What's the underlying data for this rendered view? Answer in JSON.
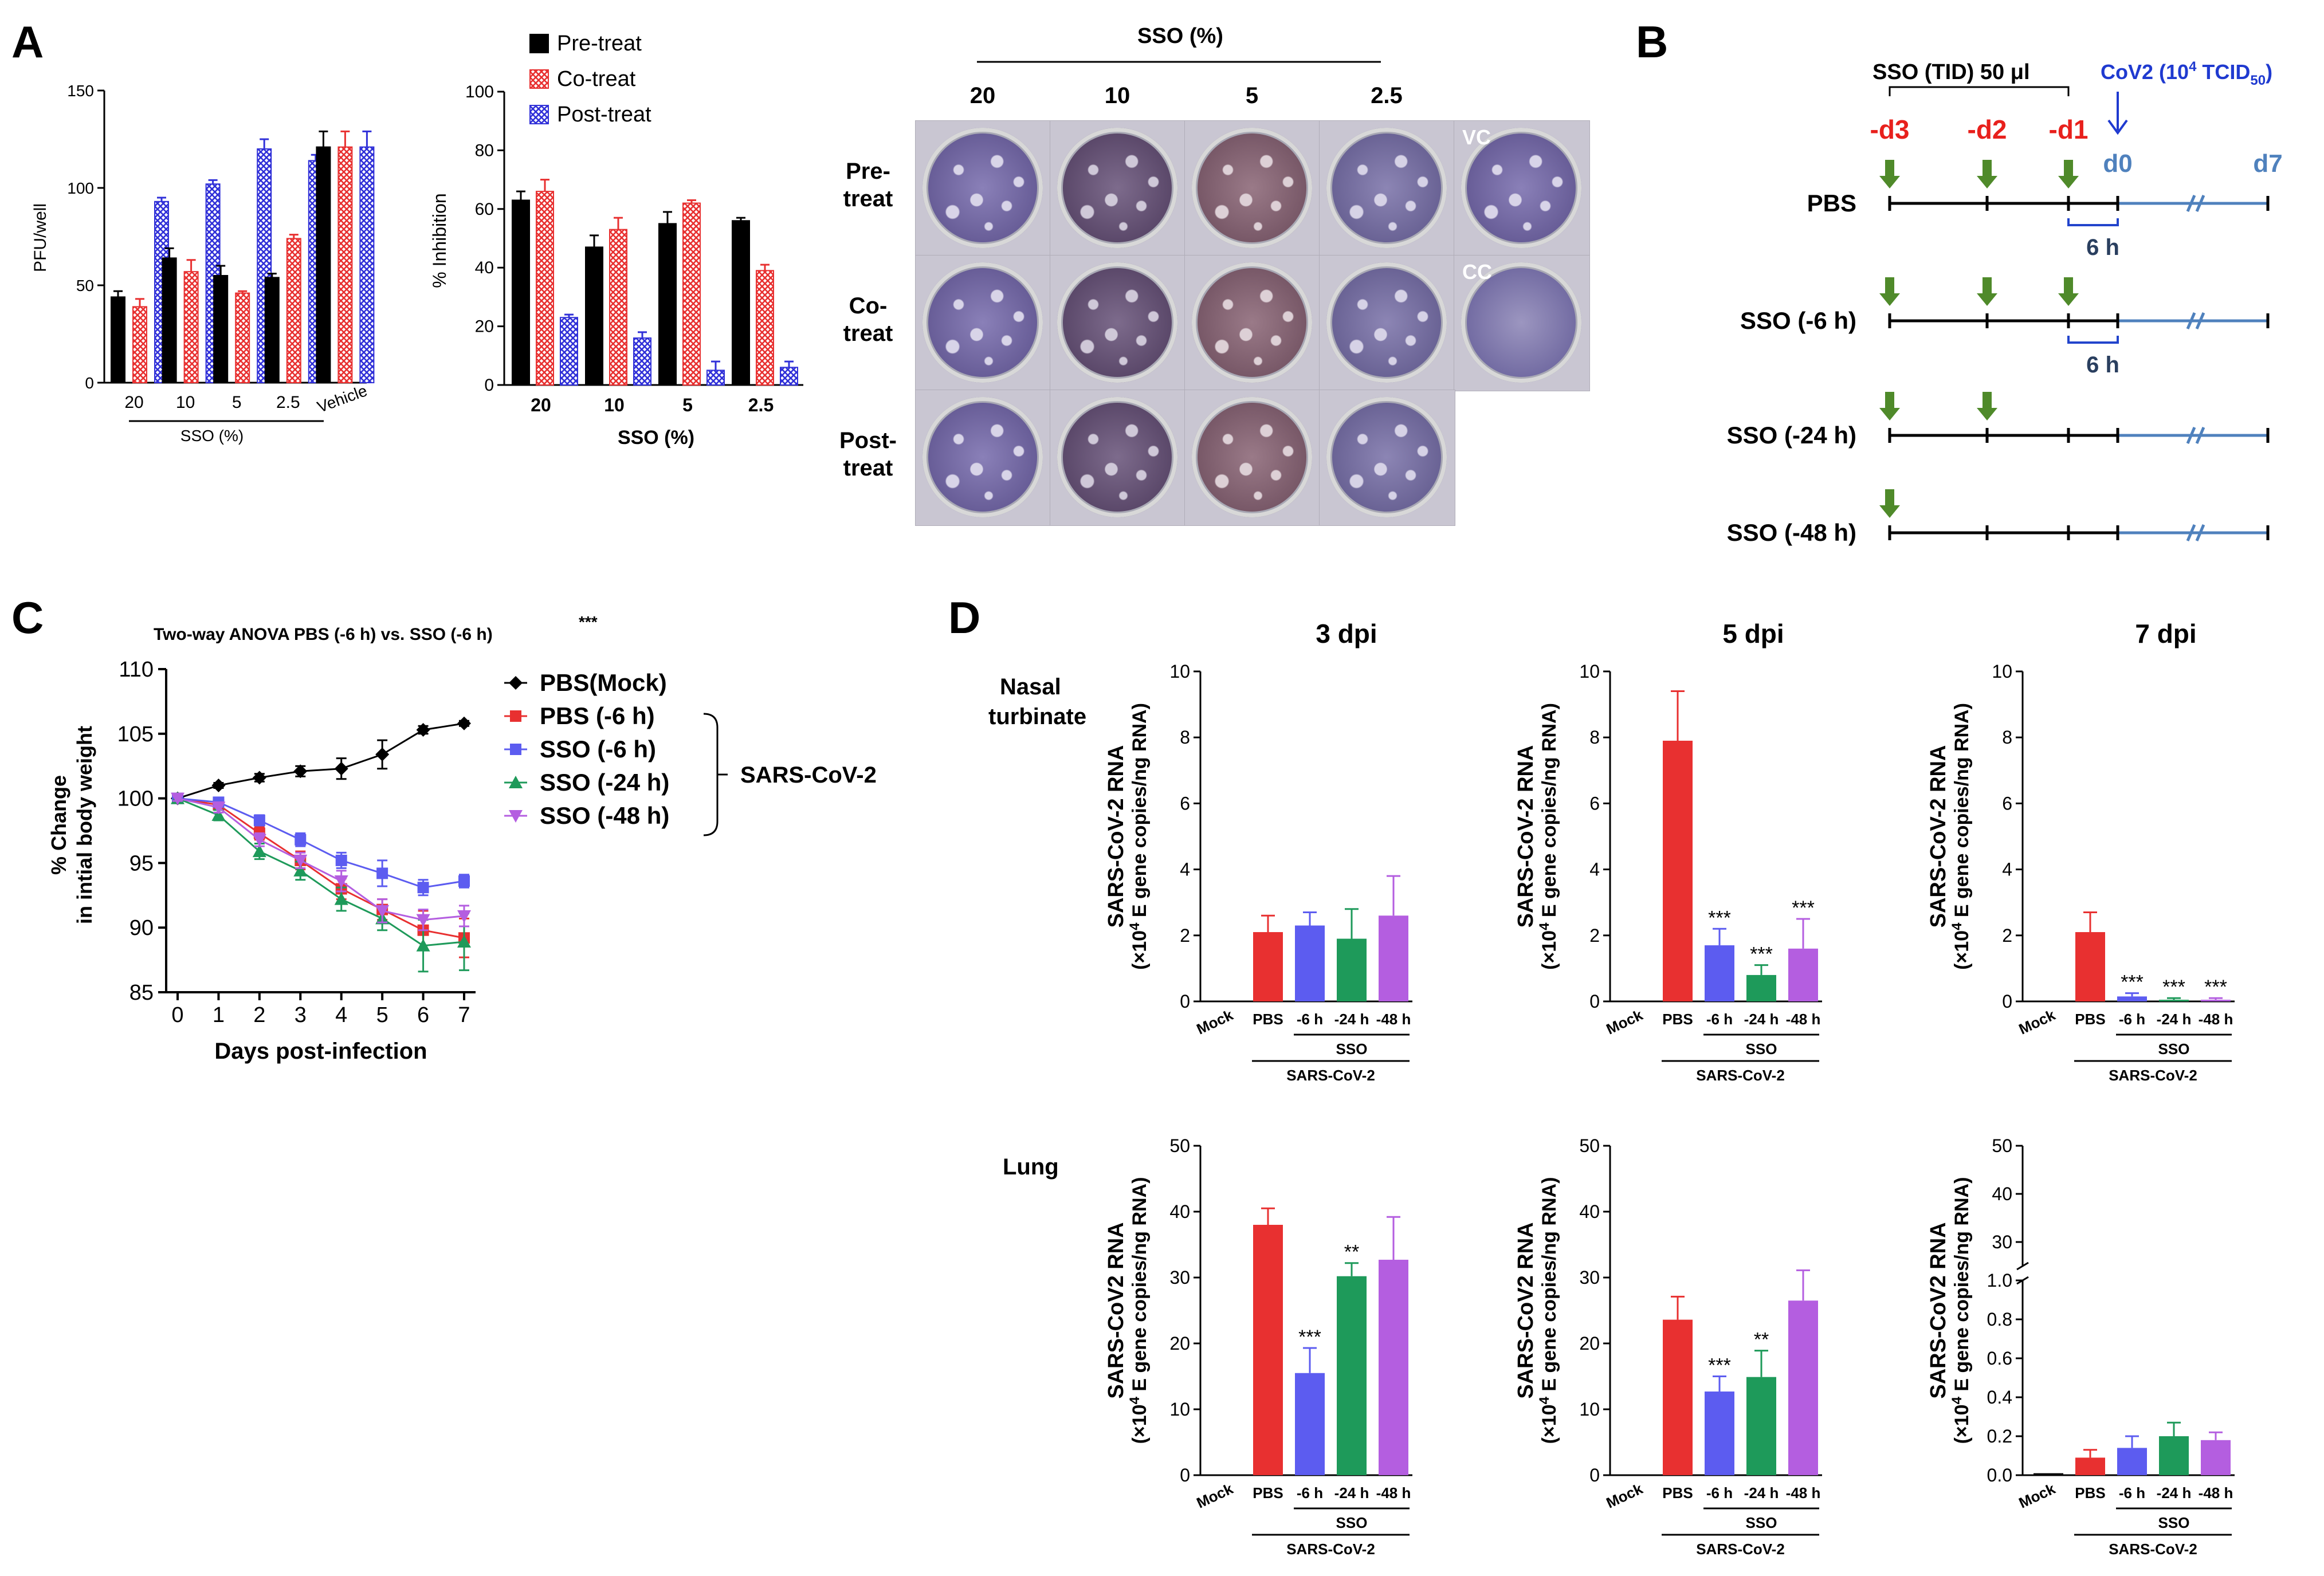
{
  "panel_letters": {
    "A": "A",
    "B": "B",
    "C": "C",
    "D": "D"
  },
  "colors": {
    "black": "#000000",
    "red": "#e83030",
    "blue": "#5c5cf0",
    "green": "#1e9a5a",
    "purple": "#b45ee0",
    "arrow_green": "#4f8a2a",
    "day_red": "#e8201c",
    "day_blue": "#4f81bd",
    "cov_blue": "#1f3ad0"
  },
  "panel_A": {
    "pfu_chart": {
      "type": "bar",
      "ylabel": "PFU/well",
      "ylim": [
        0,
        150
      ],
      "yticks": [
        0,
        50,
        100,
        150
      ],
      "categories": [
        "20",
        "10",
        "5",
        "2.5",
        "Vehicle"
      ],
      "group_label": "SSO (%)",
      "series": [
        {
          "name": "Pre-treat",
          "values": [
            44,
            64,
            55,
            54,
            121
          ],
          "errors": [
            3,
            5,
            5,
            2,
            8
          ]
        },
        {
          "name": "Co-treat",
          "values": [
            39,
            57,
            46,
            74,
            121
          ],
          "errors": [
            4,
            6,
            1,
            2,
            8
          ]
        },
        {
          "name": "Post-treat",
          "values": [
            93,
            102,
            120,
            114,
            121
          ],
          "errors": [
            2,
            2,
            5,
            3,
            8
          ]
        }
      ]
    },
    "inhibition_chart": {
      "type": "bar",
      "ylabel": "% Inhibition",
      "xlabel": "SSO (%)",
      "ylim": [
        0,
        100
      ],
      "yticks": [
        0,
        20,
        40,
        60,
        80,
        100
      ],
      "categories": [
        "20",
        "10",
        "5",
        "2.5"
      ],
      "legend": [
        "Pre-treat",
        "Co-treat",
        "Post-treat"
      ],
      "series": [
        {
          "name": "Pre-treat",
          "values": [
            63,
            47,
            55,
            56
          ],
          "errors": [
            3,
            4,
            4,
            1
          ]
        },
        {
          "name": "Co-treat",
          "values": [
            66,
            53,
            62,
            39
          ],
          "errors": [
            4,
            4,
            1,
            2
          ]
        },
        {
          "name": "Post-treat",
          "values": [
            23,
            16,
            5,
            6
          ],
          "errors": [
            1,
            2,
            3,
            2
          ]
        }
      ]
    },
    "plaque_grid": {
      "header": "SSO (%)",
      "columns": [
        "20",
        "10",
        "5",
        "2.5"
      ],
      "rows": [
        "Pre-\ntreat",
        "Co-\ntreat",
        "Post-\ntreat"
      ],
      "controls": [
        "VC",
        "CC"
      ]
    }
  },
  "panel_B": {
    "dose_label": "SSO (TID) 50 μl",
    "challenge_label": "CoV2 (10",
    "challenge_sup": "4",
    "challenge_unit": " TCID",
    "challenge_sub": "50",
    "challenge_close": ")",
    "days": [
      "-d3",
      "-d2",
      "-d1",
      "d0",
      "d7"
    ],
    "rows": [
      "PBS",
      "SSO (-6 h)",
      "SSO (-24 h)",
      "SSO (-48 h)"
    ],
    "gap_label": "6 h"
  },
  "panel_C": {
    "type": "line",
    "title": "Two-way ANOVA PBS (-6 h) vs. SSO (-6 h)",
    "title_sig": "***",
    "ylabel_1": "% Change",
    "ylabel_2": "in intial body weight",
    "xlabel": "Days post-infection",
    "ylim": [
      85,
      110
    ],
    "yticks": [
      85,
      90,
      95,
      100,
      105,
      110
    ],
    "x": [
      0,
      1,
      2,
      3,
      4,
      5,
      6,
      7
    ],
    "group_label": "SARS-CoV-2",
    "series": [
      {
        "name": "PBS(Mock)",
        "values": [
          100,
          101,
          101.6,
          102.1,
          102.3,
          103.4,
          105.3,
          105.8
        ],
        "errors": [
          0.2,
          0.2,
          0.3,
          0.4,
          0.8,
          1.1,
          0.3,
          0.2
        ]
      },
      {
        "name": "PBS (-6 h)",
        "values": [
          100,
          99.5,
          97.3,
          95.2,
          93,
          91.4,
          89.8,
          89.2
        ],
        "errors": [
          0.2,
          0.3,
          0.5,
          0.7,
          0.8,
          0.8,
          1.5,
          1.5
        ]
      },
      {
        "name": "SSO (-6 h)",
        "values": [
          100,
          99.7,
          98.3,
          96.8,
          95.2,
          94.2,
          93.1,
          93.6
        ],
        "errors": [
          0.2,
          0.3,
          0.4,
          0.5,
          0.6,
          1,
          0.6,
          0.5
        ]
      },
      {
        "name": "SSO (-24 h)",
        "values": [
          100,
          98.7,
          95.9,
          94.4,
          92.2,
          90.7,
          88.6,
          88.9
        ],
        "errors": [
          0.3,
          0.4,
          0.6,
          0.7,
          0.9,
          0.9,
          2,
          2.2
        ]
      },
      {
        "name": "SSO (-48 h)",
        "values": [
          100,
          99.3,
          96.8,
          95.2,
          93.6,
          91.3,
          90.6,
          90.9
        ],
        "errors": [
          0.2,
          0.4,
          0.5,
          0.6,
          0.8,
          0.9,
          0.8,
          0.8
        ]
      }
    ]
  },
  "panel_D": {
    "columns": [
      "3 dpi",
      "5 dpi",
      "7 dpi"
    ],
    "rows": [
      "Nasal\nturbinate",
      "Lung"
    ],
    "ylabel_1_nasal": "SARS-CoV-2 RNA",
    "ylabel_1_lung": "SARS-CoV2 RNA",
    "ylabel_2a": "(×10",
    "ylabel_2sup": "4",
    "ylabel_2b": " E gene copies/ng RNA)",
    "categories": [
      "Mock",
      "PBS",
      "-6 h",
      "-24 h",
      "-48 h"
    ],
    "bracket_inner": "SSO",
    "bracket_outer": "SARS-CoV-2",
    "charts": [
      {
        "type": "bar",
        "title": "3 dpi",
        "tissue": "Nasal turbinate",
        "ylim": [
          0,
          10
        ],
        "yticks": [
          0,
          2,
          4,
          6,
          8,
          10
        ],
        "values": [
          0,
          2.1,
          2.3,
          1.9,
          2.6
        ],
        "errors": [
          0,
          0.5,
          0.4,
          0.9,
          1.2
        ],
        "sig": [
          "",
          "",
          "",
          "",
          ""
        ]
      },
      {
        "type": "bar",
        "title": "5 dpi",
        "tissue": "Nasal turbinate",
        "ylim": [
          0,
          10
        ],
        "yticks": [
          0,
          2,
          4,
          6,
          8,
          10
        ],
        "values": [
          0,
          7.9,
          1.7,
          0.8,
          1.6
        ],
        "errors": [
          0,
          1.5,
          0.5,
          0.3,
          0.9
        ],
        "sig": [
          "",
          "",
          "***",
          "***",
          "***"
        ]
      },
      {
        "type": "bar",
        "title": "7 dpi",
        "tissue": "Nasal turbinate",
        "ylim": [
          0,
          10
        ],
        "yticks": [
          0,
          2,
          4,
          6,
          8,
          10
        ],
        "values": [
          0,
          2.1,
          0.15,
          0.05,
          0.05
        ],
        "errors": [
          0,
          0.6,
          0.1,
          0.05,
          0.05
        ],
        "sig": [
          "",
          "",
          "***",
          "***",
          "***"
        ]
      },
      {
        "type": "bar",
        "title": "3 dpi",
        "tissue": "Lung",
        "ylim": [
          0,
          50
        ],
        "yticks": [
          0,
          10,
          20,
          30,
          40,
          50
        ],
        "values": [
          0,
          38,
          15.5,
          30.2,
          32.7
        ],
        "errors": [
          0,
          2.5,
          3.8,
          2,
          6.5
        ],
        "sig": [
          "",
          "",
          "***",
          "**",
          ""
        ]
      },
      {
        "type": "bar",
        "title": "5 dpi",
        "tissue": "Lung",
        "ylim": [
          0,
          50
        ],
        "yticks": [
          0,
          10,
          20,
          30,
          40,
          50
        ],
        "values": [
          0,
          23.6,
          12.7,
          14.9,
          26.5
        ],
        "errors": [
          0,
          3.5,
          2.3,
          4,
          4.6
        ],
        "sig": [
          "",
          "",
          "***",
          "**",
          ""
        ]
      },
      {
        "type": "bar",
        "title": "7 dpi",
        "tissue": "Lung",
        "broken_axis": true,
        "ylim_lower": [
          0,
          1
        ],
        "ylim_upper": [
          25,
          50
        ],
        "yticks_lower": [
          "0.0",
          "0.2",
          "0.4",
          "0.6",
          "0.8",
          "1.0"
        ],
        "yticks_upper": [
          "30",
          "40",
          "50"
        ],
        "values": [
          0.01,
          0.09,
          0.14,
          0.2,
          0.18
        ],
        "errors": [
          0,
          0.04,
          0.06,
          0.07,
          0.04
        ],
        "sig": [
          "",
          "",
          "",
          "",
          ""
        ]
      }
    ]
  }
}
